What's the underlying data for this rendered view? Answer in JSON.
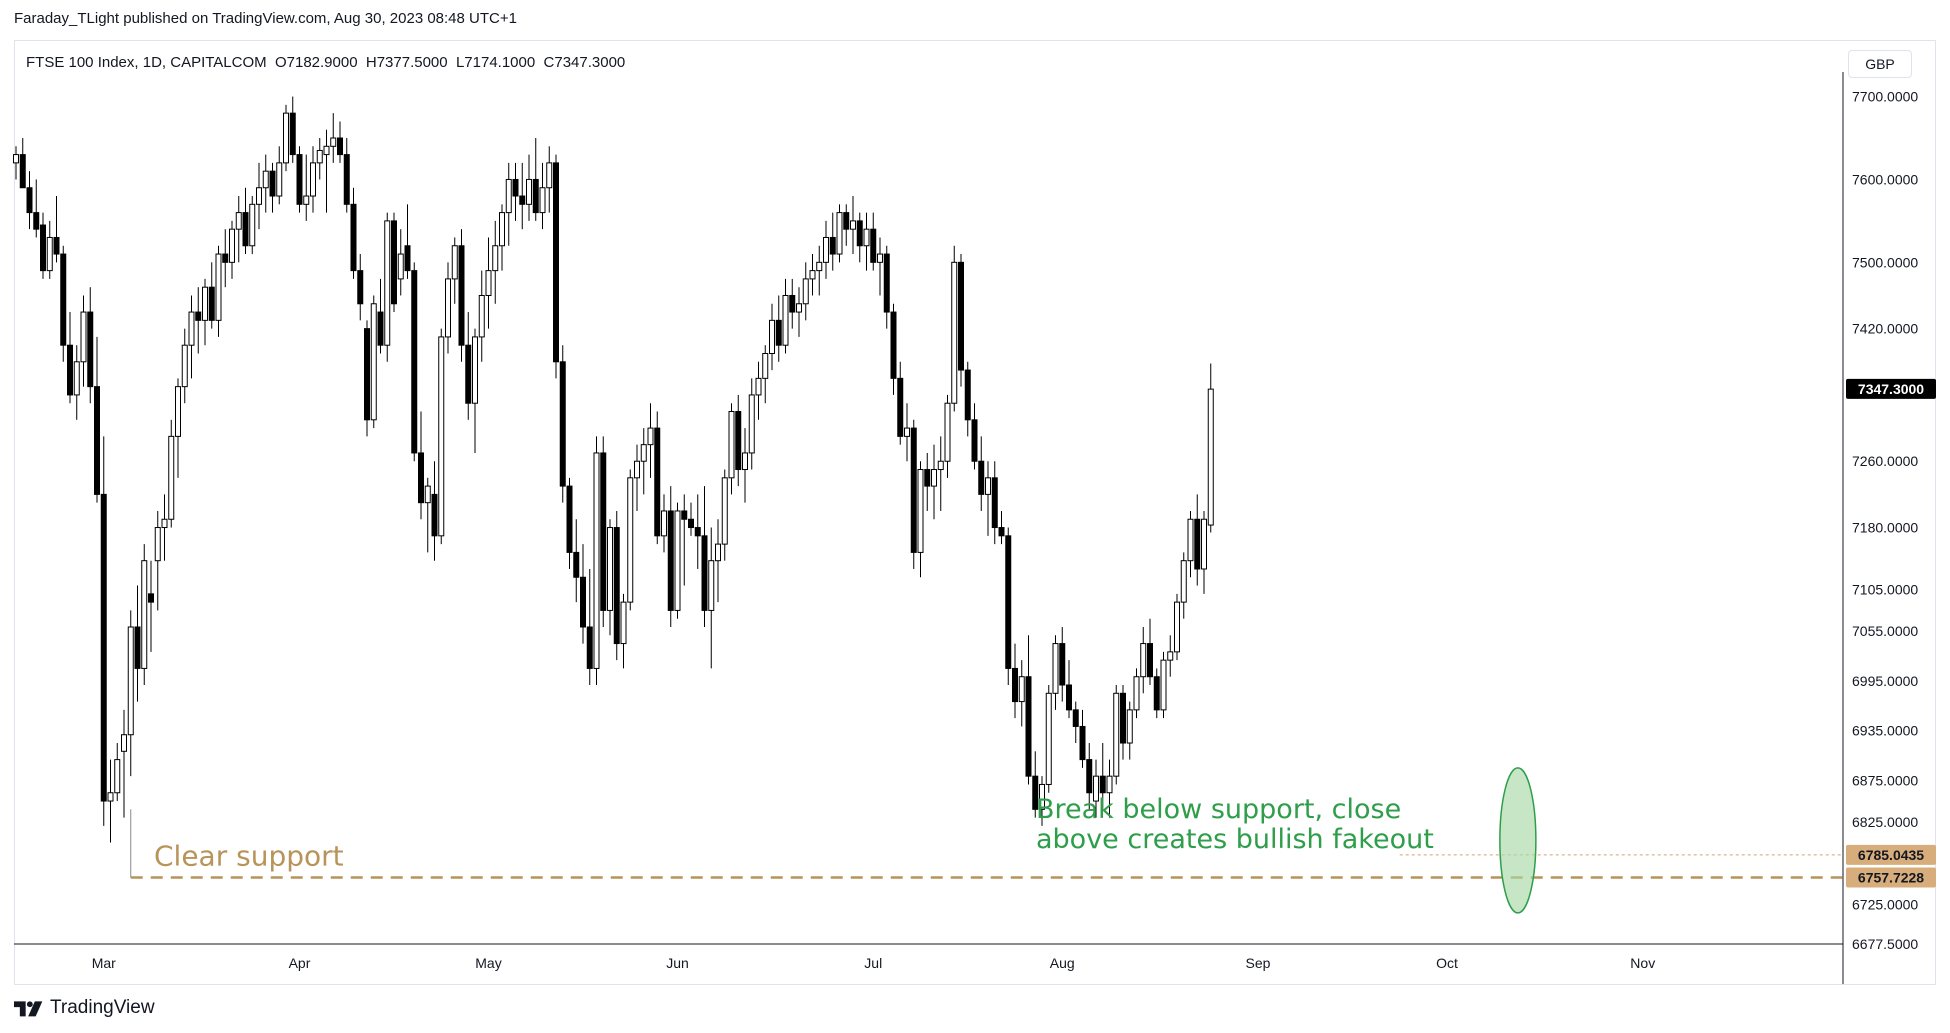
{
  "header": {
    "published_by": "Faraday_TLight published on TradingView.com, Aug 30, 2023 08:48 UTC+1"
  },
  "symbol_bar": {
    "text": "FTSE 100 Index, 1D, CAPITALCOM  O7182.9000  H7377.5000  L7174.1000  C7347.3000"
  },
  "currency_button": {
    "label": "GBP"
  },
  "footer": {
    "logo_text": "TradingView"
  },
  "colors": {
    "up_candle_fill": "#ffffff",
    "down_candle_fill": "#000000",
    "support_line": "#b8935a",
    "support_label": "#b8935a",
    "annotation_green": "#2e9e4a",
    "highlight_ellipse": "#a8d8a8",
    "price_badge": "#000000",
    "level_badge": "#d7ae7b"
  },
  "chart_data": {
    "type": "candlestick",
    "title": "FTSE 100 Index, 1D, CAPITALCOM",
    "ylim": [
      6677.5,
      7720
    ],
    "y_ticks": [
      "7700.0000",
      "7600.0000",
      "7500.0000",
      "7420.0000",
      "7260.0000",
      "7180.0000",
      "7105.0000",
      "7055.0000",
      "6995.0000",
      "6935.0000",
      "6875.0000",
      "6825.0000",
      "6725.0000",
      "6677.5000"
    ],
    "month_labels": [
      {
        "label": "Mar",
        "index": 13
      },
      {
        "label": "Apr",
        "index": 42
      },
      {
        "label": "May",
        "index": 70
      },
      {
        "label": "Jun",
        "index": 98
      },
      {
        "label": "Jul",
        "index": 127
      },
      {
        "label": "Aug",
        "index": 155
      },
      {
        "label": "Sep",
        "index": 184
      },
      {
        "label": "Oct",
        "index": 212
      },
      {
        "label": "Nov",
        "index": 241
      }
    ],
    "last_price": {
      "value": 7347.3,
      "label": "7347.3000"
    },
    "levels": [
      {
        "value": 6785.0435,
        "label": "6785.0435",
        "style": "dotted"
      },
      {
        "value": 6757.7228,
        "label": "6757.7228",
        "style": "dashed"
      }
    ],
    "support_line": {
      "value": 6757.7228,
      "start_index": 17
    },
    "annotations": [
      {
        "text": "Clear support"
      },
      {
        "lines": [
          "Break below support, close",
          "above creates bullish fakeout"
        ]
      }
    ],
    "highlight": {
      "center_index": 222.5,
      "y_low": 6715,
      "y_high": 6890
    },
    "candles": [
      [
        7620,
        7640,
        7600,
        7630
      ],
      [
        7630,
        7650,
        7590,
        7590
      ],
      [
        7590,
        7610,
        7540,
        7560
      ],
      [
        7560,
        7600,
        7530,
        7540
      ],
      [
        7545,
        7560,
        7480,
        7490
      ],
      [
        7490,
        7550,
        7480,
        7530
      ],
      [
        7530,
        7580,
        7500,
        7510
      ],
      [
        7510,
        7520,
        7380,
        7400
      ],
      [
        7400,
        7440,
        7330,
        7340
      ],
      [
        7340,
        7400,
        7310,
        7380
      ],
      [
        7380,
        7460,
        7350,
        7440
      ],
      [
        7440,
        7470,
        7330,
        7350
      ],
      [
        7350,
        7410,
        7210,
        7220
      ],
      [
        7220,
        7290,
        6820,
        6850
      ],
      [
        6850,
        6900,
        6800,
        6860
      ],
      [
        6860,
        6920,
        6850,
        6900
      ],
      [
        6910,
        6960,
        6830,
        6930
      ],
      [
        6930,
        7080,
        6880,
        7060
      ],
      [
        7060,
        7110,
        6970,
        7010
      ],
      [
        7010,
        7160,
        6990,
        7140
      ],
      [
        7100,
        7140,
        7030,
        7090
      ],
      [
        7140,
        7200,
        7080,
        7180
      ],
      [
        7180,
        7220,
        7140,
        7190
      ],
      [
        7190,
        7310,
        7180,
        7290
      ],
      [
        7290,
        7360,
        7240,
        7350
      ],
      [
        7350,
        7420,
        7330,
        7400
      ],
      [
        7400,
        7460,
        7360,
        7440
      ],
      [
        7440,
        7470,
        7390,
        7430
      ],
      [
        7430,
        7480,
        7400,
        7470
      ],
      [
        7470,
        7500,
        7420,
        7430
      ],
      [
        7430,
        7520,
        7410,
        7510
      ],
      [
        7510,
        7540,
        7470,
        7500
      ],
      [
        7500,
        7550,
        7480,
        7540
      ],
      [
        7540,
        7580,
        7500,
        7560
      ],
      [
        7560,
        7590,
        7510,
        7520
      ],
      [
        7520,
        7580,
        7510,
        7570
      ],
      [
        7570,
        7620,
        7540,
        7590
      ],
      [
        7590,
        7630,
        7560,
        7610
      ],
      [
        7610,
        7620,
        7560,
        7580
      ],
      [
        7580,
        7640,
        7570,
        7620
      ],
      [
        7620,
        7690,
        7610,
        7680
      ],
      [
        7680,
        7700,
        7620,
        7630
      ],
      [
        7630,
        7640,
        7560,
        7570
      ],
      [
        7570,
        7630,
        7550,
        7580
      ],
      [
        7580,
        7640,
        7560,
        7620
      ],
      [
        7620,
        7650,
        7600,
        7635
      ],
      [
        7630,
        7660,
        7560,
        7640
      ],
      [
        7640,
        7680,
        7620,
        7650
      ],
      [
        7650,
        7670,
        7620,
        7630
      ],
      [
        7630,
        7650,
        7560,
        7570
      ],
      [
        7570,
        7590,
        7480,
        7490
      ],
      [
        7490,
        7510,
        7430,
        7450
      ],
      [
        7420,
        7430,
        7290,
        7310
      ],
      [
        7310,
        7460,
        7300,
        7450
      ],
      [
        7440,
        7480,
        7390,
        7400
      ],
      [
        7400,
        7560,
        7380,
        7550
      ],
      [
        7550,
        7560,
        7440,
        7450
      ],
      [
        7480,
        7540,
        7460,
        7510
      ],
      [
        7520,
        7570,
        7480,
        7490
      ],
      [
        7490,
        7500,
        7260,
        7270
      ],
      [
        7270,
        7320,
        7190,
        7210
      ],
      [
        7210,
        7240,
        7150,
        7230
      ],
      [
        7220,
        7260,
        7140,
        7170
      ],
      [
        7170,
        7420,
        7160,
        7410
      ],
      [
        7410,
        7500,
        7390,
        7480
      ],
      [
        7480,
        7530,
        7450,
        7520
      ],
      [
        7520,
        7540,
        7380,
        7400
      ],
      [
        7400,
        7440,
        7310,
        7330
      ],
      [
        7330,
        7420,
        7270,
        7410
      ],
      [
        7410,
        7490,
        7380,
        7460
      ],
      [
        7460,
        7530,
        7420,
        7490
      ],
      [
        7490,
        7550,
        7450,
        7520
      ],
      [
        7520,
        7570,
        7490,
        7560
      ],
      [
        7560,
        7620,
        7520,
        7600
      ],
      [
        7600,
        7620,
        7550,
        7580
      ],
      [
        7580,
        7620,
        7540,
        7570
      ],
      [
        7570,
        7630,
        7550,
        7600
      ],
      [
        7600,
        7650,
        7550,
        7560
      ],
      [
        7560,
        7620,
        7540,
        7590
      ],
      [
        7590,
        7640,
        7560,
        7620
      ],
      [
        7620,
        7630,
        7360,
        7380
      ],
      [
        7380,
        7400,
        7210,
        7230
      ],
      [
        7230,
        7240,
        7130,
        7150
      ],
      [
        7150,
        7190,
        7090,
        7120
      ],
      [
        7120,
        7160,
        7040,
        7060
      ],
      [
        7060,
        7130,
        6990,
        7010
      ],
      [
        7010,
        7290,
        6990,
        7270
      ],
      [
        7270,
        7290,
        7060,
        7080
      ],
      [
        7080,
        7190,
        7050,
        7180
      ],
      [
        7180,
        7200,
        7020,
        7040
      ],
      [
        7040,
        7100,
        7010,
        7090
      ],
      [
        7090,
        7250,
        7080,
        7240
      ],
      [
        7240,
        7280,
        7200,
        7260
      ],
      [
        7260,
        7300,
        7220,
        7280
      ],
      [
        7280,
        7330,
        7240,
        7300
      ],
      [
        7300,
        7320,
        7160,
        7170
      ],
      [
        7170,
        7220,
        7150,
        7200
      ],
      [
        7200,
        7230,
        7060,
        7080
      ],
      [
        7080,
        7210,
        7070,
        7200
      ],
      [
        7200,
        7220,
        7110,
        7190
      ],
      [
        7190,
        7210,
        7170,
        7180
      ],
      [
        7180,
        7220,
        7130,
        7170
      ],
      [
        7170,
        7230,
        7060,
        7080
      ],
      [
        7080,
        7180,
        7010,
        7140
      ],
      [
        7140,
        7190,
        7090,
        7160
      ],
      [
        7160,
        7250,
        7140,
        7240
      ],
      [
        7240,
        7330,
        7220,
        7320
      ],
      [
        7320,
        7340,
        7230,
        7250
      ],
      [
        7250,
        7300,
        7210,
        7270
      ],
      [
        7270,
        7360,
        7250,
        7340
      ],
      [
        7340,
        7380,
        7310,
        7360
      ],
      [
        7360,
        7400,
        7330,
        7390
      ],
      [
        7390,
        7450,
        7370,
        7430
      ],
      [
        7430,
        7460,
        7380,
        7400
      ],
      [
        7400,
        7480,
        7390,
        7460
      ],
      [
        7460,
        7480,
        7420,
        7440
      ],
      [
        7440,
        7470,
        7410,
        7450
      ],
      [
        7450,
        7500,
        7430,
        7480
      ],
      [
        7480,
        7510,
        7460,
        7490
      ],
      [
        7490,
        7520,
        7460,
        7500
      ],
      [
        7500,
        7550,
        7480,
        7530
      ],
      [
        7530,
        7560,
        7490,
        7510
      ],
      [
        7510,
        7570,
        7500,
        7560
      ],
      [
        7560,
        7570,
        7520,
        7540
      ],
      [
        7540,
        7580,
        7510,
        7550
      ],
      [
        7550,
        7560,
        7500,
        7520
      ],
      [
        7520,
        7560,
        7490,
        7540
      ],
      [
        7540,
        7560,
        7490,
        7500
      ],
      [
        7500,
        7530,
        7460,
        7510
      ],
      [
        7510,
        7520,
        7420,
        7440
      ],
      [
        7440,
        7450,
        7340,
        7360
      ],
      [
        7360,
        7380,
        7280,
        7290
      ],
      [
        7290,
        7330,
        7260,
        7300
      ],
      [
        7300,
        7310,
        7130,
        7150
      ],
      [
        7150,
        7260,
        7120,
        7250
      ],
      [
        7250,
        7270,
        7200,
        7230
      ],
      [
        7230,
        7280,
        7190,
        7250
      ],
      [
        7250,
        7290,
        7200,
        7260
      ],
      [
        7260,
        7340,
        7240,
        7330
      ],
      [
        7330,
        7520,
        7320,
        7500
      ],
      [
        7500,
        7510,
        7350,
        7370
      ],
      [
        7370,
        7380,
        7290,
        7310
      ],
      [
        7310,
        7330,
        7250,
        7260
      ],
      [
        7260,
        7290,
        7200,
        7220
      ],
      [
        7220,
        7260,
        7170,
        7240
      ],
      [
        7240,
        7260,
        7160,
        7180
      ],
      [
        7180,
        7200,
        7160,
        7170
      ],
      [
        7170,
        7180,
        6990,
        7010
      ],
      [
        7010,
        7040,
        6950,
        6970
      ],
      [
        6970,
        7020,
        6940,
        7000
      ],
      [
        7000,
        7050,
        6870,
        6880
      ],
      [
        6880,
        6910,
        6830,
        6840
      ],
      [
        6840,
        6880,
        6820,
        6870
      ],
      [
        6870,
        6990,
        6860,
        6980
      ],
      [
        6980,
        7050,
        6960,
        7040
      ],
      [
        7040,
        7060,
        6970,
        6990
      ],
      [
        6990,
        7020,
        6950,
        6960
      ],
      [
        6960,
        6970,
        6920,
        6940
      ],
      [
        6940,
        6960,
        6890,
        6900
      ],
      [
        6900,
        6920,
        6840,
        6860
      ],
      [
        6850,
        6900,
        6830,
        6880
      ],
      [
        6880,
        6920,
        6840,
        6860
      ],
      [
        6860,
        6900,
        6830,
        6880
      ],
      [
        6880,
        6990,
        6870,
        6980
      ],
      [
        6980,
        6990,
        6900,
        6920
      ],
      [
        6920,
        6970,
        6900,
        6960
      ],
      [
        6960,
        7010,
        6950,
        7000
      ],
      [
        7000,
        7060,
        6980,
        7040
      ],
      [
        7040,
        7070,
        6990,
        7000
      ],
      [
        7000,
        7010,
        6950,
        6960
      ],
      [
        6960,
        7030,
        6950,
        7020
      ],
      [
        7020,
        7050,
        7000,
        7030
      ],
      [
        7030,
        7100,
        7020,
        7090
      ],
      [
        7090,
        7150,
        7070,
        7140
      ],
      [
        7140,
        7200,
        7120,
        7190
      ],
      [
        7190,
        7220,
        7110,
        7130
      ],
      [
        7130,
        7200,
        7100,
        7190
      ],
      [
        7183,
        7378,
        7174,
        7347
      ]
    ]
  }
}
